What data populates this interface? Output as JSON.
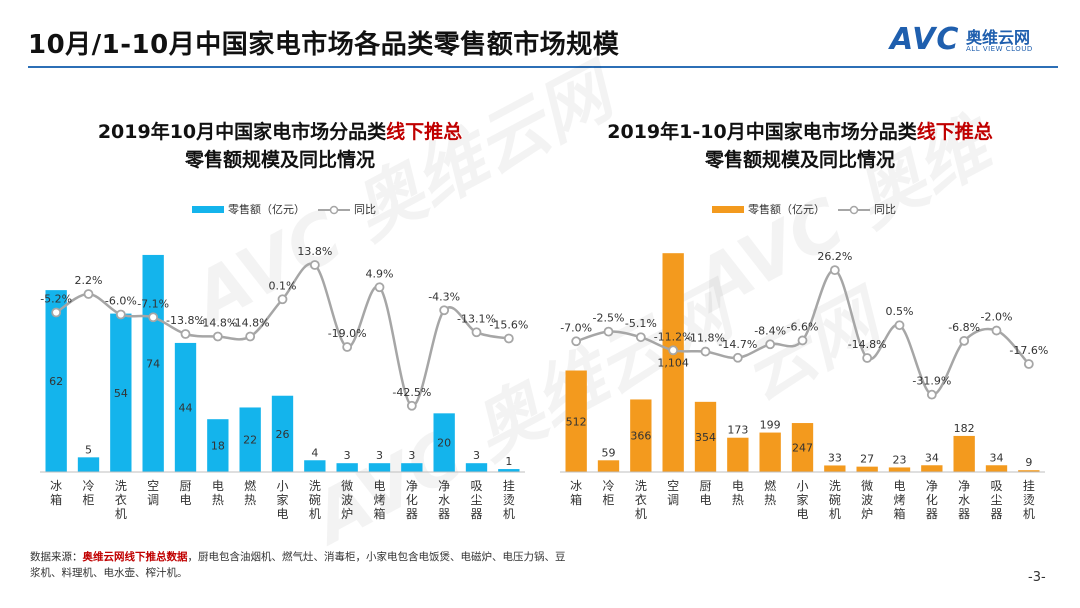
{
  "page": {
    "title": "10月/1-10月中国家电市场各品类零售额市场规模",
    "page_number": "-3-"
  },
  "logo": {
    "brand": "AVC",
    "cn": "奥维云网",
    "en": "ALL VIEW CLOUD"
  },
  "watermark": {
    "text": "AVC 奥维云网"
  },
  "footnote": {
    "prefix": "数据来源：",
    "source": "奥维云网线下推总数据",
    "rest": "，厨电包含油烟机、燃气灶、消毒柜，小家电包含电饭煲、电磁炉、电压力锅、豆浆机、料理机、电水壶、榨汁机。"
  },
  "chart_data": [
    {
      "type": "bar+line",
      "title_line1_prefix": "2019年10月中国家电市场分品类",
      "title_highlight": "线下推总",
      "title_line2": "零售额规模及同比情况",
      "bar_color": "#14b4ec",
      "line_color": "#a6a6a6",
      "legend": {
        "bar": "零售额（亿元）",
        "line": "同比"
      },
      "categories": [
        "冰箱",
        "冷柜",
        "洗衣机",
        "空调",
        "厨电",
        "电热",
        "燃热",
        "小家电",
        "洗碗机",
        "微波炉",
        "电烤箱",
        "净化器",
        "净水器",
        "吸尘器",
        "挂烫机"
      ],
      "values": [
        62,
        5,
        54,
        74,
        44,
        18,
        22,
        26,
        4,
        3,
        3,
        3,
        20,
        3,
        1
      ],
      "value_labels": [
        "62",
        "5",
        "54",
        "74",
        "44",
        "18",
        "22",
        "26",
        "4",
        "3",
        "3",
        "3",
        "20",
        "3",
        "1"
      ],
      "yoy": [
        -5.2,
        2.2,
        -6.0,
        -7.1,
        -13.8,
        -14.8,
        -14.8,
        0.1,
        13.8,
        -19.0,
        4.9,
        -42.5,
        -4.3,
        -13.1,
        -15.6
      ],
      "yoy_labels": [
        "-5.2%",
        "2.2%",
        "-6.0%",
        "-7.1%",
        "-13.8%",
        "-14.8%",
        "-14.8%",
        "0.1%",
        "13.8%",
        "-19.0%",
        "4.9%",
        "-42.5%",
        "-4.3%",
        "-13.1%",
        "-15.6%"
      ],
      "bar_ylim": [
        0,
        75
      ],
      "line_ylim": [
        -45,
        15
      ]
    },
    {
      "type": "bar+line",
      "title_line1_prefix": "2019年1-10月中国家电市场分品类",
      "title_highlight": "线下推总",
      "title_line2": "零售额规模及同比情况",
      "bar_color": "#f39a1e",
      "line_color": "#a6a6a6",
      "legend": {
        "bar": "零售额（亿元）",
        "line": "同比"
      },
      "categories": [
        "冰箱",
        "冷柜",
        "洗衣机",
        "空调",
        "厨电",
        "电热",
        "燃热",
        "小家电",
        "洗碗机",
        "微波炉",
        "电烤箱",
        "净化器",
        "净水器",
        "吸尘器",
        "挂烫机"
      ],
      "values": [
        512,
        59,
        366,
        1104,
        354,
        173,
        199,
        247,
        33,
        27,
        23,
        34,
        182,
        34,
        9
      ],
      "value_labels": [
        "512",
        "59",
        "366",
        "1,104",
        "354",
        "173",
        "199",
        "247",
        "33",
        "27",
        "23",
        "34",
        "182",
        "34",
        "9"
      ],
      "yoy": [
        -7.0,
        -2.5,
        -5.1,
        -11.2,
        -11.8,
        -14.7,
        -8.4,
        -6.6,
        26.2,
        -14.8,
        0.5,
        -31.9,
        -6.8,
        -2.0,
        -17.6
      ],
      "yoy_labels": [
        "-7.0%",
        "-2.5%",
        "-5.1%",
        "-11.2%",
        "-11.8%",
        "-14.7%",
        "-8.4%",
        "-6.6%",
        "26.2%",
        "-14.8%",
        "0.5%",
        "-31.9%",
        "-6.8%",
        "-2.0%",
        "-17.6%"
      ],
      "bar_ylim": [
        0,
        1110
      ],
      "line_ylim": [
        -40,
        30
      ]
    }
  ]
}
